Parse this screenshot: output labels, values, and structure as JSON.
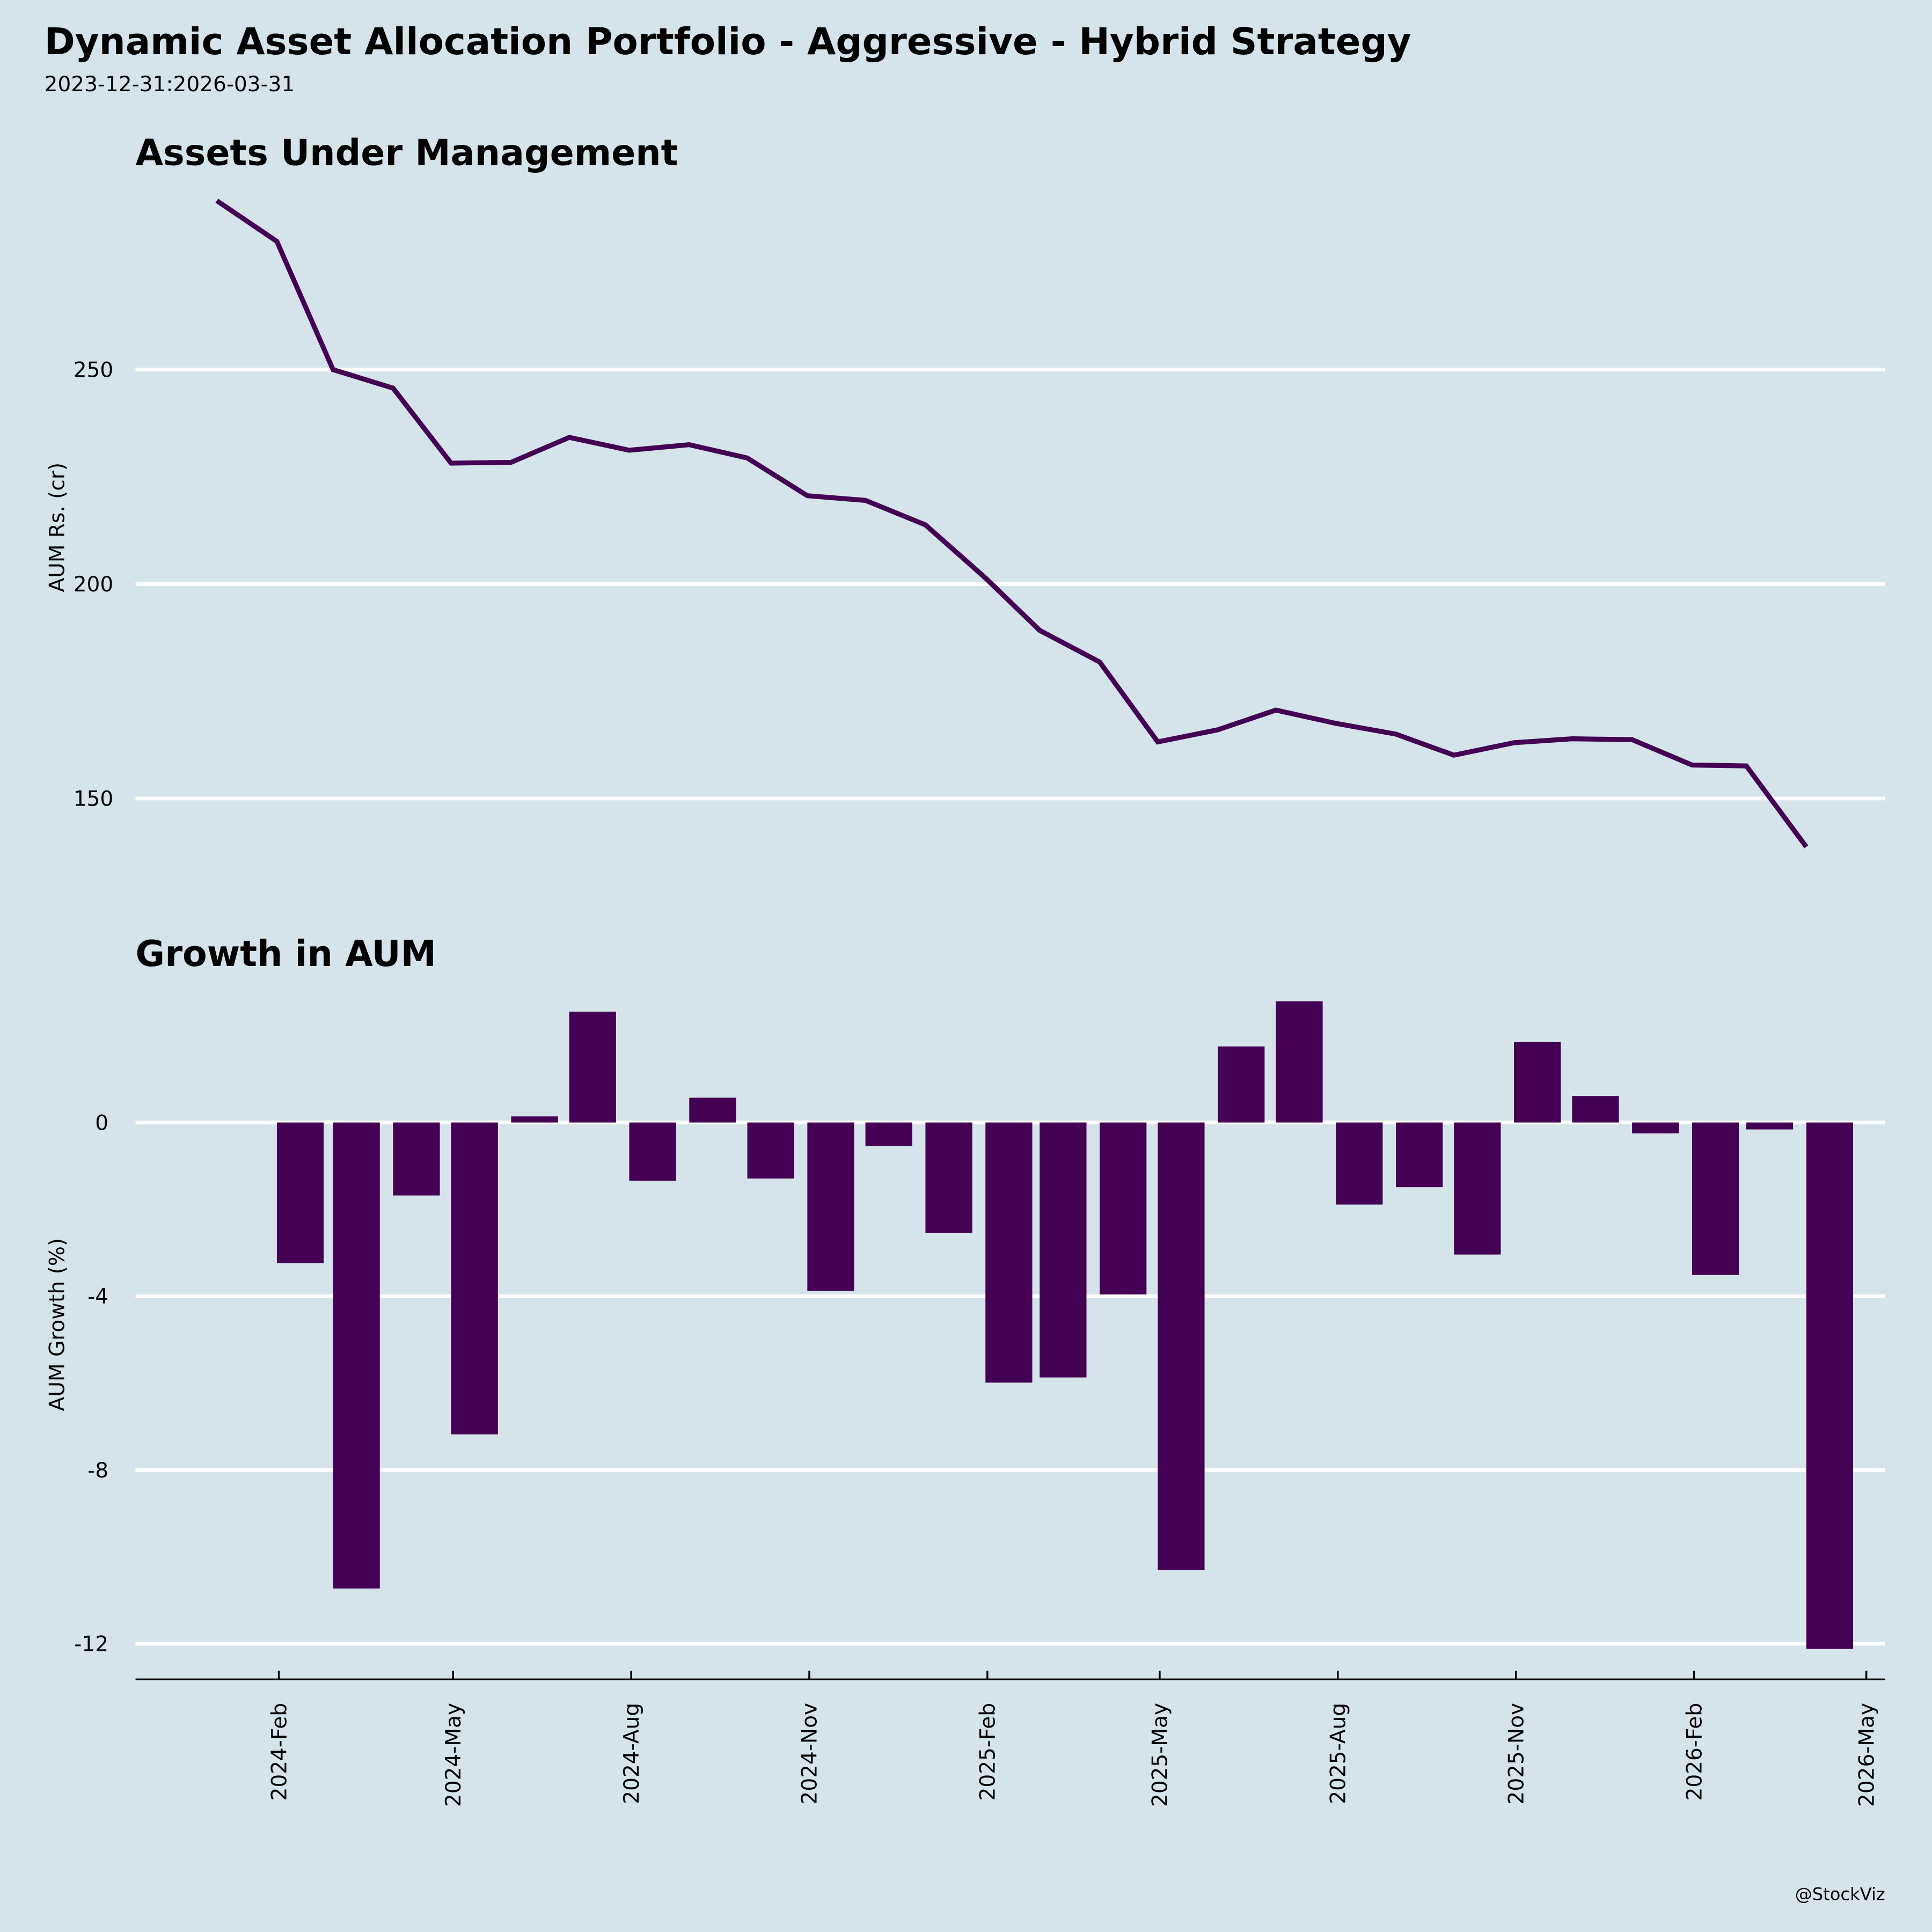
{
  "header": {
    "title": "Dynamic Asset Allocation Portfolio - Aggressive - Hybrid Strategy",
    "subtitle": "2023-12-31:2026-03-31"
  },
  "footer": {
    "credit": "@StockViz"
  },
  "colors": {
    "background": "#d5e4eb",
    "series": "#440154",
    "grid": "#ffffff"
  },
  "chart_data": [
    {
      "type": "line",
      "title": "Assets Under Management",
      "xlabel": "",
      "ylabel": "AUM Rs. (cr)",
      "ylim": [
        130,
        295
      ],
      "yticks": [
        150,
        200,
        250
      ],
      "grid": true,
      "x": [
        "2023-12-31",
        "2024-01-31",
        "2024-02-29",
        "2024-03-31",
        "2024-04-30",
        "2024-05-31",
        "2024-06-30",
        "2024-07-31",
        "2024-08-31",
        "2024-09-30",
        "2024-10-31",
        "2024-11-30",
        "2024-12-31",
        "2025-01-31",
        "2025-02-28",
        "2025-03-31",
        "2025-04-30",
        "2025-05-31",
        "2025-06-30",
        "2025-07-31",
        "2025-08-31",
        "2025-09-30",
        "2025-10-31",
        "2025-11-30",
        "2025-12-31",
        "2026-01-31",
        "2026-02-28",
        "2026-03-31"
      ],
      "values": [
        289.4,
        279.9,
        250.0,
        245.7,
        228.2,
        228.4,
        234.2,
        231.2,
        232.5,
        229.4,
        220.6,
        219.5,
        213.8,
        201.4,
        189.2,
        181.8,
        163.2,
        166.0,
        170.6,
        167.5,
        165.0,
        160.1,
        163.0,
        163.9,
        163.7,
        157.8,
        157.6,
        138.7
      ]
    },
    {
      "type": "bar",
      "title": "Growth in AUM",
      "xlabel": "",
      "ylabel": "AUM Growth (%)",
      "ylim": [
        -12.8,
        3.2
      ],
      "yticks": [
        0,
        -4,
        -8,
        -12
      ],
      "ytick_labels": [
        "0",
        "-4",
        "-8",
        "-12"
      ],
      "grid": true,
      "xtick_labels": [
        "2024-Feb",
        "2024-May",
        "2024-Aug",
        "2024-Nov",
        "2025-Feb",
        "2025-May",
        "2025-Aug",
        "2025-Nov",
        "2026-Feb",
        "2026-May"
      ],
      "x": [
        "2024-01-31",
        "2024-02-29",
        "2024-03-31",
        "2024-04-30",
        "2024-05-31",
        "2024-06-30",
        "2024-07-31",
        "2024-08-31",
        "2024-09-30",
        "2024-10-31",
        "2024-11-30",
        "2024-12-31",
        "2025-01-31",
        "2025-02-28",
        "2025-03-31",
        "2025-04-30",
        "2025-05-31",
        "2025-06-30",
        "2025-07-31",
        "2025-08-31",
        "2025-09-30",
        "2025-10-31",
        "2025-11-30",
        "2025-12-31",
        "2026-01-31",
        "2026-02-28",
        "2026-03-31"
      ],
      "values": [
        -3.24,
        -10.73,
        -1.68,
        -7.18,
        0.14,
        2.55,
        -1.34,
        0.57,
        -1.29,
        -3.88,
        -0.54,
        -2.54,
        -5.99,
        -5.87,
        -3.96,
        -10.3,
        1.75,
        2.79,
        -1.89,
        -1.49,
        -3.04,
        1.85,
        0.61,
        -0.25,
        -3.51,
        -0.16,
        -12.12
      ]
    }
  ]
}
